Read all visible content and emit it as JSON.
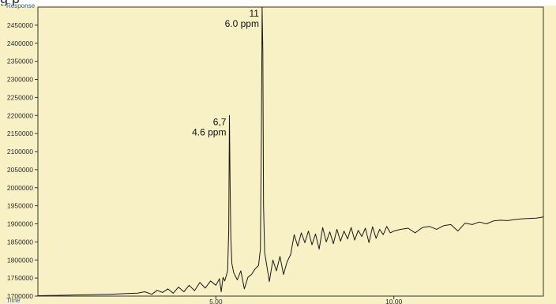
{
  "header": {
    "cropped_title": "g                     p"
  },
  "chart_data": {
    "type": "line",
    "ylabel": "Response",
    "xlabel": "Time",
    "ylim": [
      1700000,
      2500000
    ],
    "xlim": [
      0.0,
      14.2
    ],
    "grid": false,
    "yticks": [
      1700000,
      1750000,
      1800000,
      1850000,
      1900000,
      1950000,
      2000000,
      2050000,
      2100000,
      2150000,
      2200000,
      2250000,
      2300000,
      2350000,
      2400000,
      2450000
    ],
    "ytick_labels": [
      "1700000",
      "1750000",
      "1800000",
      "1850000",
      "1900000",
      "1950000",
      "2000000",
      "2050000",
      "2100000",
      "2150000",
      "2200000",
      "2250000",
      "2300000",
      "2350000",
      "2400000",
      "2450000"
    ],
    "xticks": [
      5.0,
      10.0
    ],
    "xtick_labels": [
      "5.00",
      "10.00"
    ],
    "annotations": [
      {
        "id": "peak-6-7",
        "line1": "6,7",
        "line2": "4.6 ppm",
        "x": 5.38,
        "y": 2200000
      },
      {
        "id": "peak-11",
        "line1": "11",
        "line2": "6.0 ppm",
        "x": 6.3,
        "y": 2500000
      }
    ],
    "series": [
      {
        "color": "#1a1a1a",
        "x": [
          0.0,
          0.5,
          1.0,
          1.5,
          2.0,
          2.5,
          2.8,
          3.0,
          3.2,
          3.35,
          3.5,
          3.65,
          3.8,
          3.95,
          4.1,
          4.25,
          4.4,
          4.55,
          4.7,
          4.85,
          5.0,
          5.1,
          5.15,
          5.2,
          5.25,
          5.3,
          5.33,
          5.36,
          5.38,
          5.4,
          5.42,
          5.45,
          5.5,
          5.6,
          5.7,
          5.8,
          5.9,
          6.0,
          6.1,
          6.2,
          6.25,
          6.28,
          6.3,
          6.32,
          6.34,
          6.37,
          6.42,
          6.5,
          6.6,
          6.7,
          6.8,
          6.9,
          7.0,
          7.1,
          7.2,
          7.3,
          7.4,
          7.5,
          7.6,
          7.7,
          7.8,
          7.9,
          8.0,
          8.1,
          8.2,
          8.3,
          8.4,
          8.5,
          8.6,
          8.7,
          8.8,
          8.9,
          9.0,
          9.1,
          9.2,
          9.3,
          9.4,
          9.5,
          9.6,
          9.7,
          9.8,
          9.9,
          10.0,
          10.2,
          10.4,
          10.6,
          10.8,
          11.0,
          11.2,
          11.4,
          11.6,
          11.8,
          12.0,
          12.2,
          12.4,
          12.6,
          12.8,
          13.0,
          13.2,
          13.4,
          13.6,
          13.8,
          14.0,
          14.2
        ],
        "y": [
          1701000,
          1702000,
          1703000,
          1704000,
          1705000,
          1707000,
          1708000,
          1712000,
          1705000,
          1716000,
          1710000,
          1720000,
          1708000,
          1725000,
          1712000,
          1730000,
          1715000,
          1738000,
          1722000,
          1742000,
          1730000,
          1748000,
          1712000,
          1752000,
          1742000,
          1760000,
          1770000,
          1880000,
          2200000,
          2000000,
          1860000,
          1790000,
          1765000,
          1745000,
          1770000,
          1720000,
          1752000,
          1760000,
          1775000,
          1785000,
          1830000,
          2150000,
          2500000,
          2380000,
          1950000,
          1820000,
          1790000,
          1740000,
          1800000,
          1770000,
          1810000,
          1760000,
          1795000,
          1815000,
          1870000,
          1838000,
          1875000,
          1848000,
          1880000,
          1842000,
          1872000,
          1830000,
          1890000,
          1850000,
          1878000,
          1845000,
          1885000,
          1852000,
          1880000,
          1858000,
          1890000,
          1855000,
          1882000,
          1865000,
          1888000,
          1848000,
          1892000,
          1860000,
          1885000,
          1870000,
          1893000,
          1875000,
          1880000,
          1885000,
          1888000,
          1875000,
          1890000,
          1893000,
          1885000,
          1895000,
          1898000,
          1880000,
          1902000,
          1898000,
          1905000,
          1900000,
          1908000,
          1910000,
          1909000,
          1912000,
          1914000,
          1915000,
          1916000,
          1919000
        ]
      }
    ]
  }
}
